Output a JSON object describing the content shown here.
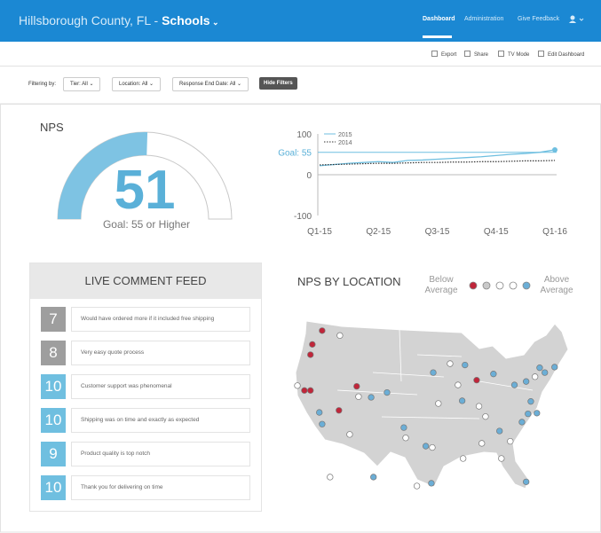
{
  "header": {
    "org": "Hillsborough County, FL -",
    "section": "Schools",
    "nav": [
      "Dashboard",
      "Administration",
      "Give Feedback"
    ]
  },
  "toolbar": [
    "Export",
    "Share",
    "TV Mode",
    "Edit Dashboard"
  ],
  "filters": {
    "label": "Filtering by:",
    "items": [
      "Tier: All",
      "Location: All",
      "Response End Date: All"
    ],
    "button": "Hide Filters"
  },
  "nps_gauge": {
    "title": "NPS",
    "value": 51,
    "range": [
      0,
      100
    ],
    "goal_text": "Goal: 55 or Higher",
    "color": "#7ec3e3"
  },
  "trend_chart": {
    "type": "line",
    "categories": [
      "Q1-15",
      null,
      null,
      null,
      "Q2-15",
      null,
      null,
      null,
      "Q3-15",
      null,
      null,
      null,
      "Q4-15",
      null,
      null,
      null,
      "Q1-16"
    ],
    "series": [
      {
        "name": "2015",
        "color": "#6fbfe0",
        "values": [
          22,
          25,
          28,
          30,
          32,
          30,
          35,
          36,
          38,
          40,
          42,
          44,
          47,
          50,
          52,
          55,
          61
        ]
      },
      {
        "name": "2014",
        "color": "#333333",
        "values": [
          24,
          25,
          26,
          27,
          28,
          28,
          29,
          30,
          30,
          31,
          31,
          32,
          32,
          33,
          34,
          34,
          35
        ]
      }
    ],
    "ylim": [
      -100,
      100
    ],
    "yticks": [
      100,
      0,
      -100
    ],
    "goal": 55,
    "goal_label": "Goal: 55"
  },
  "comment_feed": {
    "title": "LIVE COMMENT FEED",
    "items": [
      {
        "score": 7,
        "text": "Would have ordered more if it included free shipping",
        "color": "#9e9e9e"
      },
      {
        "score": 8,
        "text": "Very easy quote process",
        "color": "#9e9e9e"
      },
      {
        "score": 10,
        "text": "Customer support was phenomenal",
        "color": "#6fbfe0"
      },
      {
        "score": 10,
        "text": "Shipping was on time and exactly as expected",
        "color": "#6fbfe0"
      },
      {
        "score": 9,
        "text": "Product quality is top notch",
        "color": "#6fbfe0"
      },
      {
        "score": 10,
        "text": "Thank you for delivering on time",
        "color": "#6fbfe0"
      }
    ]
  },
  "location_map": {
    "title": "NPS BY LOCATION",
    "legend_low": "Below Average",
    "legend_high": "Above Average",
    "level_colors": [
      "#c0263a",
      "#c9c9c9",
      "#ffffff",
      "#ffffff",
      "#6baed6"
    ],
    "locations": [
      [
        -119.7,
        47.6,
        0
      ],
      [
        -115.9,
        46.9,
        2
      ],
      [
        -121.8,
        45.6,
        0
      ],
      [
        -122.2,
        44.1,
        0
      ],
      [
        -125.0,
        39.6,
        2
      ],
      [
        -123.5,
        38.9,
        0
      ],
      [
        -122.2,
        38.9,
        0
      ],
      [
        -120.3,
        35.7,
        4
      ],
      [
        -119.7,
        34.0,
        4
      ],
      [
        -116.1,
        36.0,
        0
      ],
      [
        -112.3,
        39.5,
        0
      ],
      [
        -111.9,
        38.0,
        2
      ],
      [
        -113.8,
        32.5,
        2
      ],
      [
        -105.8,
        38.6,
        4
      ],
      [
        -109.2,
        37.9,
        4
      ],
      [
        -102.2,
        33.5,
        4
      ],
      [
        -101.8,
        32.0,
        2
      ],
      [
        -97.5,
        30.8,
        4
      ],
      [
        -96.1,
        30.6,
        2
      ],
      [
        -96.3,
        25.4,
        4
      ],
      [
        -99.4,
        25.0,
        2
      ],
      [
        -108.7,
        26.3,
        4
      ],
      [
        -118.0,
        26.3,
        2
      ],
      [
        -95.9,
        41.5,
        4
      ],
      [
        -92.3,
        42.8,
        2
      ],
      [
        -89.1,
        42.6,
        4
      ],
      [
        -90.6,
        39.7,
        2
      ],
      [
        -94.8,
        37.0,
        2
      ],
      [
        -89.7,
        37.4,
        4
      ],
      [
        -86.6,
        40.4,
        0
      ],
      [
        -86.1,
        36.6,
        2
      ],
      [
        -84.7,
        35.1,
        2
      ],
      [
        -83.0,
        41.3,
        4
      ],
      [
        -78.5,
        39.7,
        4
      ],
      [
        -76.0,
        40.2,
        4
      ],
      [
        -74.1,
        40.9,
        2
      ],
      [
        -73.1,
        42.2,
        4
      ],
      [
        -72.0,
        41.5,
        4
      ],
      [
        -69.9,
        42.3,
        4
      ],
      [
        -75.0,
        37.3,
        4
      ],
      [
        -73.7,
        35.6,
        4
      ],
      [
        -75.6,
        35.5,
        4
      ],
      [
        -76.9,
        34.3,
        4
      ],
      [
        -81.7,
        33.0,
        4
      ],
      [
        -79.4,
        31.5,
        2
      ],
      [
        -85.5,
        31.2,
        2
      ],
      [
        -89.5,
        29.0,
        2
      ],
      [
        -81.3,
        29.0,
        2
      ],
      [
        -76.0,
        25.6,
        4
      ]
    ]
  }
}
